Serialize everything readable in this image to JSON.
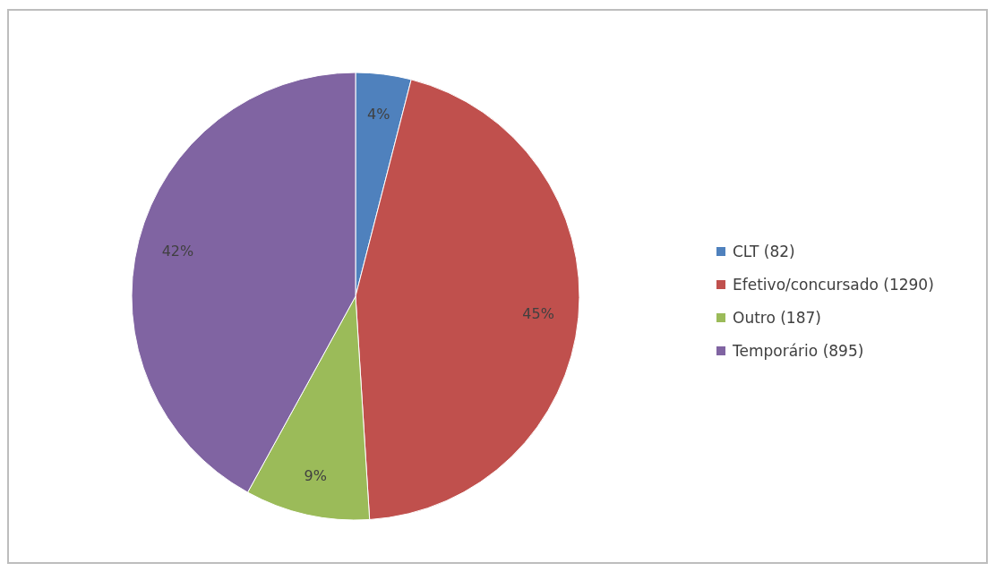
{
  "chart_data": {
    "type": "pie",
    "categories": [
      "CLT (82)",
      "Efetivo/concursado (1290)",
      "Outro (187)",
      "Temporário (895)"
    ],
    "values": [
      4,
      45,
      9,
      42
    ],
    "colors": [
      "#4f81bd",
      "#c0504d",
      "#9bbb59",
      "#8064a2"
    ],
    "value_labels": [
      "4%",
      "45%",
      "9%",
      "42%"
    ],
    "legend": "right"
  }
}
